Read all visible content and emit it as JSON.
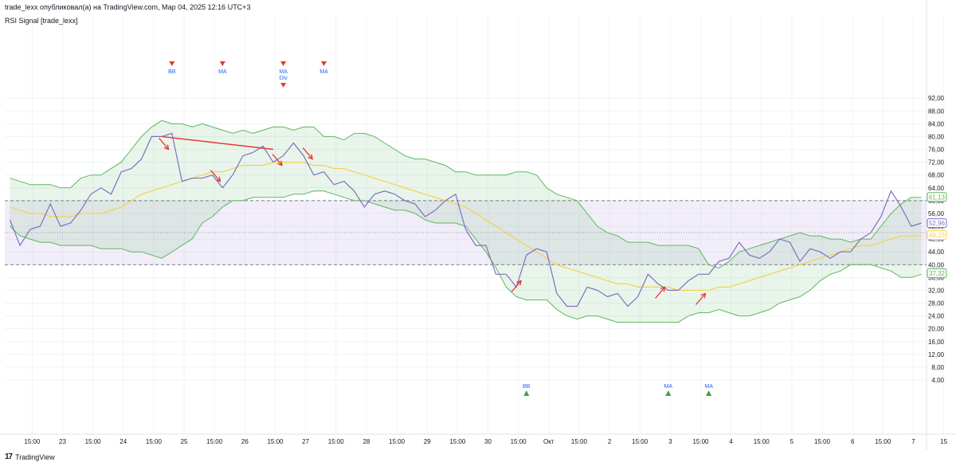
{
  "header": {
    "publisher_line": "trade_lexx опубликовал(а) на TradingView.com, Мар 04, 2025 12:16 UTC+3",
    "indicator_name": "RSI Signal [trade_lexx]"
  },
  "footer": {
    "logo_mark": "17",
    "logo_text": "TradingView"
  },
  "colors": {
    "rsi": "#7e6fc2",
    "ma": "#f5d04e",
    "bands": "#5cb85c",
    "band_fill": "rgba(76,175,80,0.12)",
    "zone_fill": "rgba(149,117,205,0.12)",
    "signal_sell": "#e53935",
    "signal_buy": "#43a047",
    "label_blue": "#2962ff",
    "arrow": "#e53935"
  },
  "chart_data": {
    "type": "line",
    "ylim": [
      0,
      95
    ],
    "y_ticks": [
      "4,00",
      "8,00",
      "12,00",
      "16,00",
      "20,00",
      "24,00",
      "28,00",
      "32,00",
      "36,00",
      "40,00",
      "44,00",
      "48,00",
      "52,00",
      "56,00",
      "60,00",
      "64,00",
      "68,00",
      "72,00",
      "76,00",
      "80,00",
      "84,00",
      "88,00",
      "92,00"
    ],
    "x_tick_labels": [
      {
        "i": 2.2,
        "label": "15:00"
      },
      {
        "i": 5.2,
        "label": "23"
      },
      {
        "i": 8.2,
        "label": "15:00"
      },
      {
        "i": 11.2,
        "label": "24"
      },
      {
        "i": 14.2,
        "label": "15:00"
      },
      {
        "i": 17.2,
        "label": "25"
      },
      {
        "i": 20.2,
        "label": "15:00"
      },
      {
        "i": 23.2,
        "label": "26"
      },
      {
        "i": 26.2,
        "label": "15:00"
      },
      {
        "i": 29.2,
        "label": "27"
      },
      {
        "i": 32.2,
        "label": "15:00"
      },
      {
        "i": 35.2,
        "label": "28"
      },
      {
        "i": 38.2,
        "label": "15:00"
      },
      {
        "i": 41.2,
        "label": "29"
      },
      {
        "i": 44.2,
        "label": "15:00"
      },
      {
        "i": 47.2,
        "label": "30"
      },
      {
        "i": 50.2,
        "label": "15:00"
      },
      {
        "i": 53.2,
        "label": "Окт"
      },
      {
        "i": 56.2,
        "label": "15:00"
      },
      {
        "i": 59.2,
        "label": "2"
      },
      {
        "i": 62.2,
        "label": "15:00"
      },
      {
        "i": 65.2,
        "label": "3"
      },
      {
        "i": 68.2,
        "label": "15:00"
      },
      {
        "i": 71.2,
        "label": "4"
      },
      {
        "i": 74.2,
        "label": "15:00"
      },
      {
        "i": 77.2,
        "label": "5"
      },
      {
        "i": 80.2,
        "label": "15:00"
      },
      {
        "i": 83.2,
        "label": "6"
      },
      {
        "i": 86.2,
        "label": "15:00"
      },
      {
        "i": 89.2,
        "label": "7"
      },
      {
        "i": 92.2,
        "label": "15"
      }
    ],
    "levels": {
      "upper": 60,
      "middle": 50,
      "lower": 40
    },
    "last_value_labels": [
      {
        "name": "upper_band",
        "value": "61,13"
      },
      {
        "name": "rsi",
        "value": "52,96"
      },
      {
        "name": "ma",
        "value": "49,23"
      },
      {
        "name": "lower_band",
        "value": "37,32"
      }
    ],
    "series": [
      {
        "key": "rsi",
        "values": [
          54,
          46,
          51,
          52,
          59,
          52,
          53,
          57,
          62,
          64,
          62,
          69,
          70,
          73,
          80,
          80,
          81,
          66,
          67,
          67,
          68,
          64,
          68,
          74,
          75,
          77,
          72,
          74,
          78,
          74,
          68,
          69,
          65,
          66,
          63,
          58,
          62,
          63,
          62,
          60,
          59,
          55,
          57,
          60,
          62,
          51,
          46,
          46,
          37,
          37,
          33,
          43,
          45,
          44,
          31,
          27,
          27,
          33,
          32,
          30,
          31,
          27,
          30,
          37,
          34,
          32,
          32,
          35,
          37,
          37,
          41,
          42,
          47,
          43,
          42,
          44,
          48,
          47,
          41,
          45,
          44,
          42,
          44,
          44,
          48,
          50,
          55,
          63,
          58,
          52,
          53
        ]
      },
      {
        "key": "upper_band",
        "values": [
          67,
          66,
          65,
          65,
          65,
          64,
          64,
          67,
          68,
          68,
          70,
          72,
          76,
          80,
          83,
          85,
          84,
          84,
          83,
          84,
          83,
          82,
          81,
          82,
          81,
          82,
          83,
          83,
          82,
          83,
          83,
          80,
          80,
          79,
          81,
          81,
          80,
          78,
          76,
          74,
          73,
          73,
          72,
          71,
          69,
          69,
          68,
          68,
          68,
          68,
          69,
          69,
          68,
          64,
          62,
          61,
          60,
          56,
          52,
          50,
          49,
          47,
          47,
          47,
          46,
          46,
          46,
          46,
          45,
          40,
          39,
          41,
          44,
          45,
          46,
          47,
          48,
          49,
          50,
          49,
          49,
          48,
          48,
          47,
          48,
          48,
          52,
          56,
          59,
          61,
          61
        ]
      },
      {
        "key": "lower_band",
        "values": [
          52,
          49,
          48,
          47,
          47,
          46,
          46,
          46,
          46,
          45,
          45,
          45,
          44,
          44,
          43,
          42,
          44,
          46,
          48,
          53,
          55,
          58,
          60,
          60,
          61,
          61,
          61,
          61,
          62,
          62,
          63,
          63,
          62,
          61,
          60,
          60,
          59,
          58,
          57,
          57,
          56,
          54,
          53,
          53,
          53,
          52,
          48,
          44,
          39,
          33,
          30,
          29,
          29,
          29,
          26,
          24,
          23,
          24,
          24,
          23,
          22,
          22,
          22,
          22,
          22,
          22,
          22,
          24,
          25,
          25,
          26,
          25,
          24,
          24,
          25,
          26,
          28,
          29,
          30,
          32,
          35,
          37,
          38,
          40,
          40,
          40,
          39,
          38,
          36,
          36,
          37
        ]
      },
      {
        "key": "ma",
        "values": [
          58,
          57,
          56,
          56,
          55,
          55,
          55,
          56,
          56,
          56,
          57,
          58,
          60,
          62,
          63,
          64,
          65,
          66,
          67,
          68,
          69,
          69,
          70,
          71,
          71,
          71,
          72,
          72,
          72,
          72,
          71,
          71,
          70,
          70,
          69,
          68,
          67,
          66,
          65,
          64,
          63,
          62,
          61,
          60,
          59,
          58,
          56,
          54,
          52,
          50,
          48,
          46,
          44,
          42,
          40,
          39,
          38,
          37,
          36,
          35,
          34,
          34,
          33,
          33,
          33,
          33,
          32,
          32,
          32,
          32,
          33,
          33,
          34,
          35,
          36,
          37,
          38,
          39,
          40,
          41,
          42,
          43,
          44,
          45,
          46,
          46,
          47,
          48,
          49,
          49,
          49
        ]
      }
    ],
    "sell_signals": [
      {
        "i": 16,
        "label": "BB"
      },
      {
        "i": 21,
        "label": "MA"
      },
      {
        "i": 27,
        "label": "MA\nDiv"
      },
      {
        "i": 31,
        "label": "MA"
      }
    ],
    "buy_signals": [
      {
        "i": 51,
        "label": "BB"
      },
      {
        "i": 65,
        "label": "MA"
      },
      {
        "i": 69,
        "label": "MA"
      }
    ],
    "divergence_line": {
      "from": {
        "i": 15,
        "v": 80
      },
      "to": {
        "i": 26,
        "v": 76
      }
    },
    "down_arrows": [
      {
        "i": 15.2,
        "v": 78
      },
      {
        "i": 20.3,
        "v": 68
      },
      {
        "i": 26.4,
        "v": 73
      },
      {
        "i": 29.4,
        "v": 75
      }
    ],
    "up_arrows": [
      {
        "i": 50,
        "v": 33
      },
      {
        "i": 64.2,
        "v": 31
      },
      {
        "i": 68.2,
        "v": 29
      }
    ]
  }
}
